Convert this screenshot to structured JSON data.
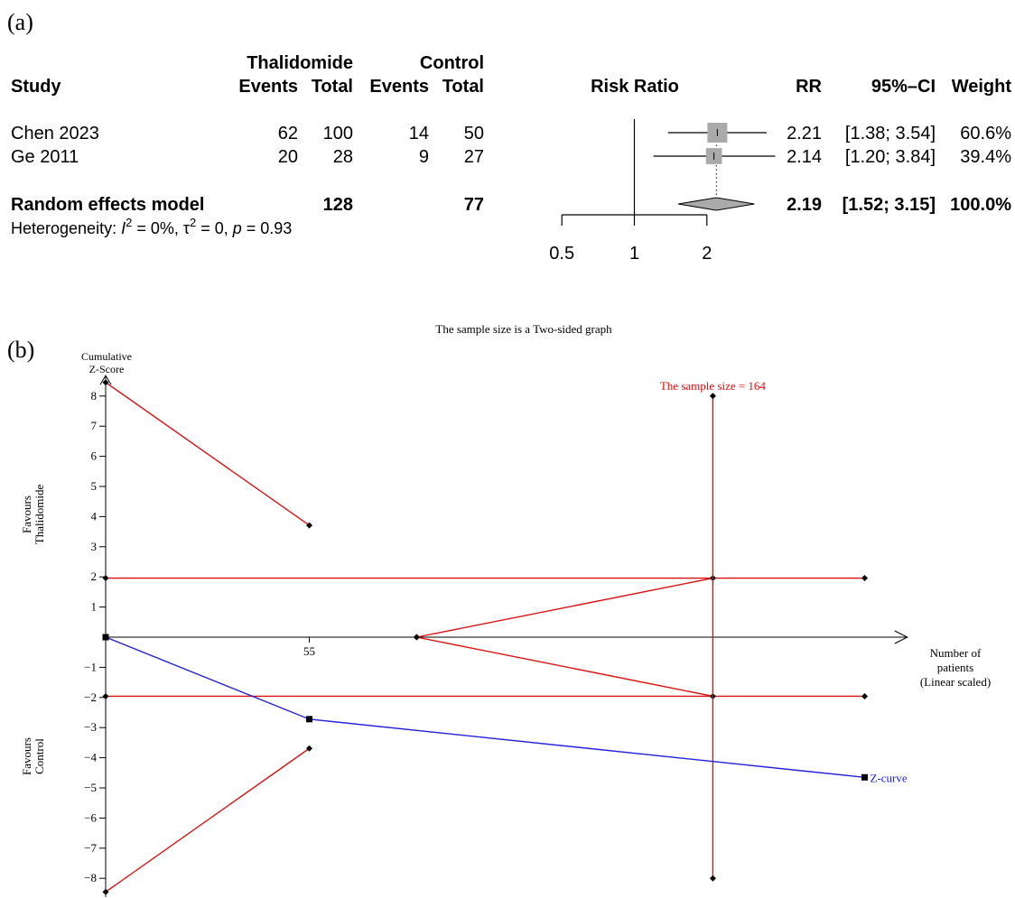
{
  "chart_data": [
    {
      "type": "table",
      "panel_label": "(a)",
      "columns": {
        "study": "Study",
        "group1": "Thalidomide",
        "group2": "Control",
        "events": "Events",
        "total": "Total",
        "plot": "Risk Ratio",
        "rr": "RR",
        "ci": "95%–CI",
        "weight": "Weight"
      },
      "studies": [
        {
          "name": "Chen 2023",
          "events1": 62,
          "total1": 100,
          "events2": 14,
          "total2": 50,
          "rr": 2.21,
          "ci_low": 1.38,
          "ci_high": 3.54,
          "rr_text": "2.21",
          "ci_text": "[1.38; 3.54]",
          "weight_text": "60.6%",
          "weight": 60.6
        },
        {
          "name": "Ge 2011",
          "events1": 20,
          "total1": 28,
          "events2": 9,
          "total2": 27,
          "rr": 2.14,
          "ci_low": 1.2,
          "ci_high": 3.84,
          "rr_text": "2.14",
          "ci_text": "[1.20; 3.84]",
          "weight_text": "39.4%",
          "weight": 39.4
        }
      ],
      "pooled": {
        "name": "Random effects model",
        "total1": 128,
        "total2": 77,
        "rr": 2.19,
        "ci_low": 1.52,
        "ci_high": 3.15,
        "rr_text": "2.19",
        "ci_text": "[1.52; 3.15]",
        "weight_text": "100.0%"
      },
      "heterogeneity": {
        "prefix": "Heterogeneity: ",
        "i2_symbol": "I",
        "i2_rest": " = 0%, ",
        "tau_symbol": "τ",
        "tau_rest": " = 0, ",
        "p_symbol": "p",
        "p_rest": " = 0.93",
        "superscript": "2"
      },
      "x_scale": "log",
      "xlim": [
        0.45,
        4.0
      ],
      "ticks": [
        0.5,
        1,
        2
      ],
      "tick_labels": [
        "0.5",
        "1",
        "2"
      ],
      "reference_line": 1
    },
    {
      "type": "line",
      "panel_label": "(b)",
      "title": "The sample size is a Two-sided graph",
      "ylabel": "Cumulative Z-Score",
      "ylabel_lines": [
        "Cumulative",
        "Z-Score"
      ],
      "xlabel_lines": [
        "Number of",
        "patients",
        "(Linear scaled)"
      ],
      "favours_upper": [
        "Favours",
        "Thalidomide"
      ],
      "favours_lower": [
        "Favours",
        "Control"
      ],
      "ylim": [
        -8.5,
        8.5
      ],
      "y_ticks": [
        8,
        7,
        6,
        5,
        4,
        3,
        2,
        1,
        -1,
        -2,
        -3,
        -4,
        -5,
        -6,
        -7,
        -8
      ],
      "y_tick_labels": [
        "8",
        "7",
        "6",
        "5",
        "4",
        "3",
        "2",
        "1",
        "−1",
        "−2",
        "−3",
        "−4",
        "−5",
        "−6",
        "−7",
        "−8"
      ],
      "x_range": [
        0,
        208
      ],
      "x_ticks": [
        55
      ],
      "x_tick_labels": [
        "55"
      ],
      "required_sample_size": 164,
      "rss_label": "The sample size = 164",
      "series": [
        {
          "name": "Z-curve",
          "color": "#2222dd",
          "marker": "square",
          "points": [
            [
              0,
              0
            ],
            [
              55,
              -2.72
            ],
            [
              205,
              -4.65
            ]
          ]
        }
      ],
      "boundaries": {
        "color": "#dd1111",
        "upper_monitoring": [
          [
            0,
            8.45
          ],
          [
            55,
            3.71
          ]
        ],
        "lower_monitoring": [
          [
            0,
            -8.45
          ],
          [
            55,
            -3.69
          ]
        ],
        "upper_conventional": [
          [
            0,
            1.96
          ],
          [
            205,
            1.96
          ]
        ],
        "lower_conventional": [
          [
            0,
            -1.96
          ],
          [
            205,
            -1.96
          ]
        ],
        "upper_futility": [
          [
            84,
            0
          ],
          [
            164,
            1.96
          ]
        ],
        "lower_futility": [
          [
            84,
            0
          ],
          [
            164,
            -1.96
          ]
        ],
        "rss_line": [
          [
            164,
            8.0
          ],
          [
            164,
            -8.0
          ]
        ]
      }
    }
  ]
}
